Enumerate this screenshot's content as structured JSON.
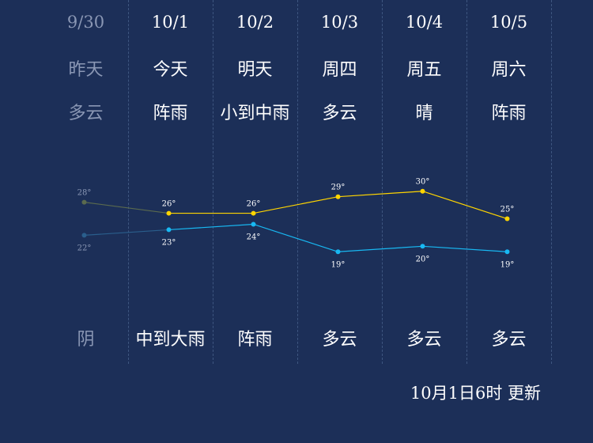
{
  "days": [
    {
      "date": "9/30",
      "label": "昨天",
      "day_weather": "多云",
      "night_weather": "阴",
      "high": "28°",
      "low": "22°",
      "past": true
    },
    {
      "date": "10/1",
      "label": "今天",
      "day_weather": "阵雨",
      "night_weather": "中到大雨",
      "high": "26°",
      "low": "23°",
      "past": false
    },
    {
      "date": "10/2",
      "label": "明天",
      "day_weather": "小到中雨",
      "night_weather": "阵雨",
      "high": "26°",
      "low": "24°",
      "past": false
    },
    {
      "date": "10/3",
      "label": "周四",
      "day_weather": "多云",
      "night_weather": "多云",
      "high": "29°",
      "low": "19°",
      "past": false
    },
    {
      "date": "10/4",
      "label": "周五",
      "day_weather": "晴",
      "night_weather": "多云",
      "high": "30°",
      "low": "20°",
      "past": false
    },
    {
      "date": "10/5",
      "label": "周六",
      "day_weather": "阵雨",
      "night_weather": "多云",
      "high": "25°",
      "low": "19°",
      "past": false
    }
  ],
  "chart_data": {
    "type": "line",
    "categories": [
      "9/30",
      "10/1",
      "10/2",
      "10/3",
      "10/4",
      "10/5"
    ],
    "series": [
      {
        "values": [
          28,
          26,
          26,
          29,
          30,
          25
        ],
        "color": "#ffd500",
        "past_color": "#5a6a4e"
      },
      {
        "values": [
          22,
          23,
          24,
          19,
          20,
          19
        ],
        "color": "#18b8f2",
        "past_color": "#2a5e8c"
      }
    ],
    "ylim": [
      13,
      36
    ],
    "grid": false
  },
  "footer": {
    "updated": "10月1日6时 更新"
  },
  "colors": {
    "background": "#1c2f58",
    "text": "#ffffff",
    "past_text": "#8a97b4",
    "high_line": "#ffd500",
    "low_line": "#18b8f2"
  }
}
